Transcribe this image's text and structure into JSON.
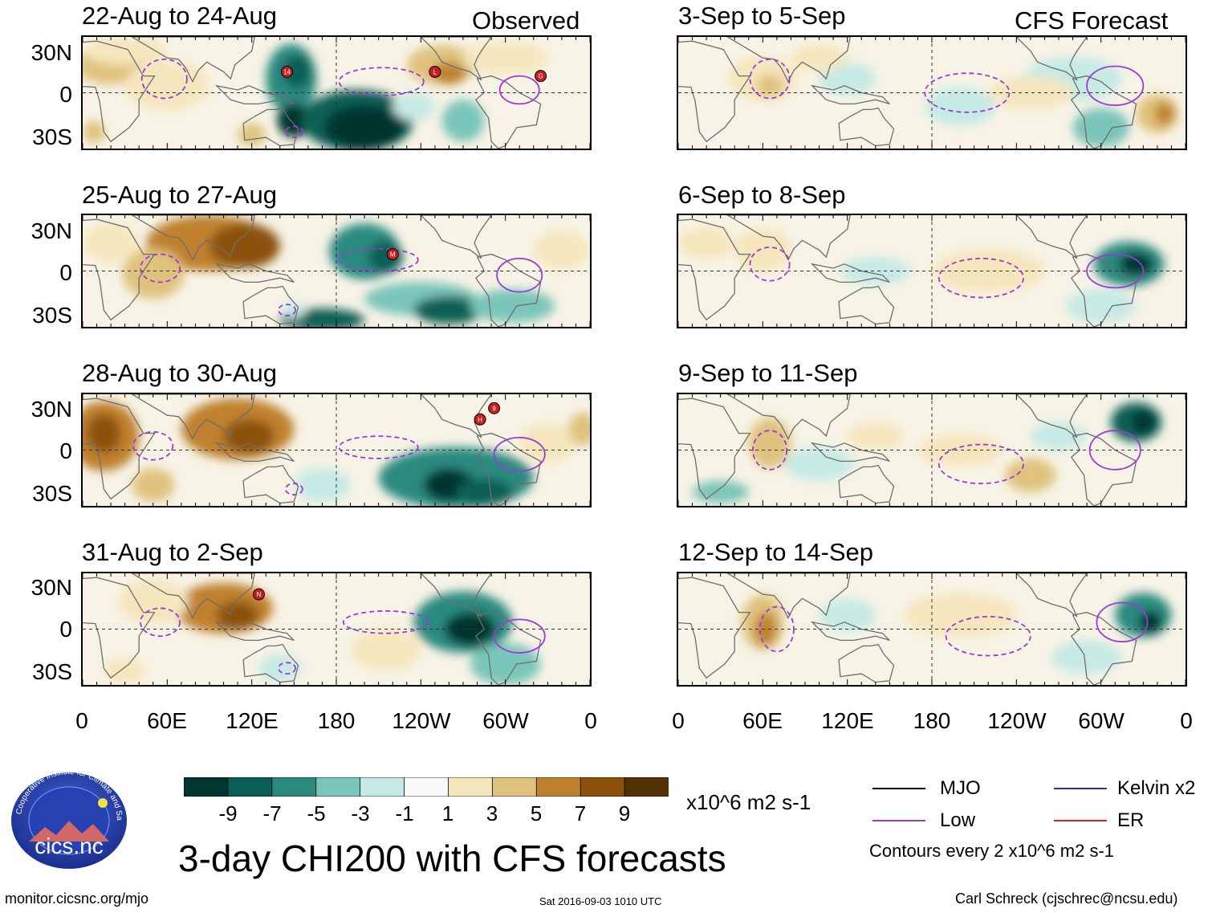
{
  "headers": {
    "observed": "Observed",
    "forecast": "CFS Forecast"
  },
  "panels": {
    "left": [
      {
        "title": "22-Aug to 24-Aug"
      },
      {
        "title": "25-Aug to 27-Aug"
      },
      {
        "title": "28-Aug to 30-Aug"
      },
      {
        "title": "31-Aug to 2-Sep"
      }
    ],
    "right": [
      {
        "title": "3-Sep to 5-Sep"
      },
      {
        "title": "6-Sep to 8-Sep"
      },
      {
        "title": "9-Sep to 11-Sep"
      },
      {
        "title": "12-Sep to 14-Sep"
      }
    ]
  },
  "axes": {
    "lat_labels": [
      "30N",
      "0",
      "30S"
    ],
    "lon_labels": [
      "0",
      "60E",
      "120E",
      "180",
      "120W",
      "60W",
      "0"
    ]
  },
  "storms": [
    {
      "panel": 0,
      "label": "14"
    },
    {
      "panel": 0,
      "label": "L"
    },
    {
      "panel": 0,
      "label": "G"
    },
    {
      "panel": 1,
      "label": "M"
    },
    {
      "panel": 2,
      "label": "H"
    },
    {
      "panel": 2,
      "label": "9"
    },
    {
      "panel": 3,
      "label": "N"
    }
  ],
  "colorbar": {
    "ticks": [
      "-9",
      "-7",
      "-5",
      "-3",
      "-1",
      "1",
      "3",
      "5",
      "7",
      "9"
    ],
    "units": "x10^6 m2 s-1",
    "colors": [
      "#00362f",
      "#0a5e55",
      "#2b8a80",
      "#7ac5b9",
      "#c6eae4",
      "#f8f8f8",
      "#f5e6bd",
      "#dfc27d",
      "#bf812d",
      "#8c510a",
      "#543005"
    ]
  },
  "legend": {
    "mjo": "MJO",
    "low": "Low",
    "kelvin": "Kelvin x2",
    "er": "ER",
    "contours": "Contours every 2 x10^6 m2 s-1",
    "colors": {
      "mjo": "#000000",
      "low": "#9b3bd6",
      "kelvin": "#2b2bcf",
      "er": "#e0201c"
    }
  },
  "logo": {
    "text": "cics.nc",
    "ring_text": "Cooperative Institute for Climate and Satellites"
  },
  "main_title": "3-day CHI200 with CFS forecasts",
  "footer": {
    "left": "monitor.cicsnc.org/mjo",
    "center": "Sat 2016-09-03 1010 UTC",
    "right": "Carl Schreck (cjschrec@ncsu.edu)"
  }
}
